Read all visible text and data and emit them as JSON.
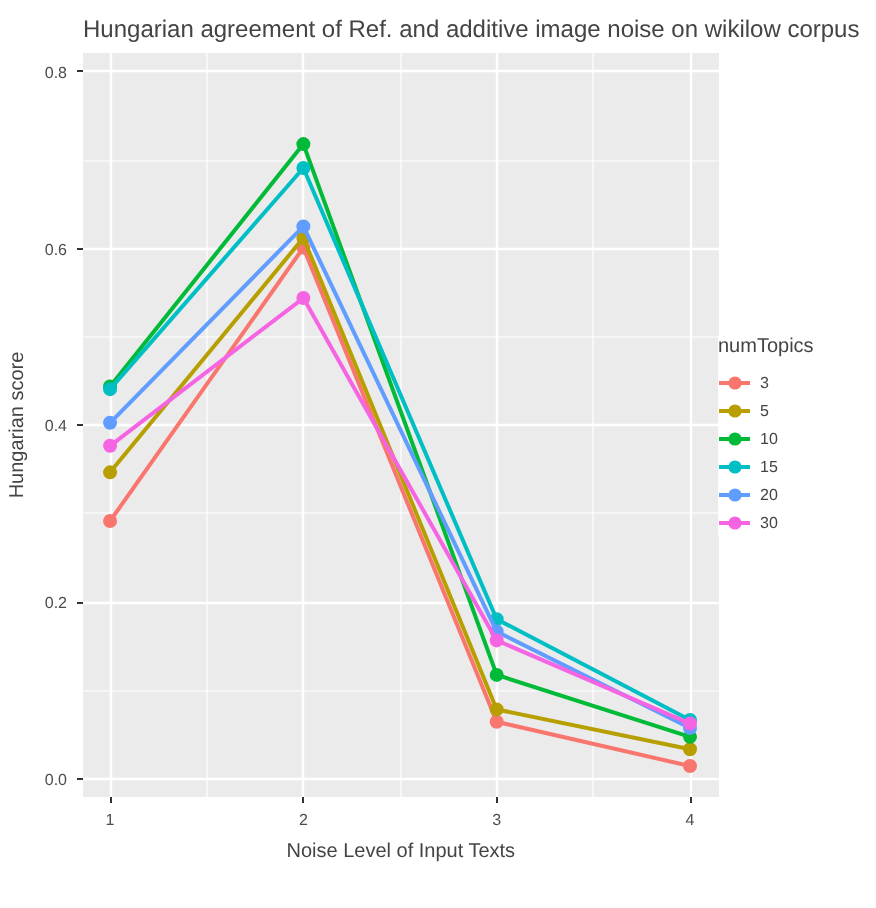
{
  "chart_data": {
    "type": "line",
    "title": "Hungarian agreement of Ref. and additive image noise on wikilow corpus",
    "xlabel": "Noise Level of Input Texts",
    "ylabel": "Hungarian score",
    "legend_title": "numTopics",
    "x": [
      1,
      2,
      3,
      4
    ],
    "series": [
      {
        "name": "3",
        "color": "#f8766d",
        "values": [
          0.292,
          0.601,
          0.065,
          0.015
        ]
      },
      {
        "name": "5",
        "color": "#b79f00",
        "values": [
          0.347,
          0.612,
          0.079,
          0.034
        ]
      },
      {
        "name": "10",
        "color": "#00ba38",
        "values": [
          0.444,
          0.718,
          0.118,
          0.048
        ]
      },
      {
        "name": "15",
        "color": "#00bfc4",
        "values": [
          0.441,
          0.691,
          0.181,
          0.067
        ]
      },
      {
        "name": "20",
        "color": "#619cff",
        "values": [
          0.403,
          0.625,
          0.167,
          0.058
        ]
      },
      {
        "name": "30",
        "color": "#f564e3",
        "values": [
          0.377,
          0.544,
          0.157,
          0.063
        ]
      }
    ],
    "xlim": [
      0.86,
      4.15
    ],
    "ylim": [
      -0.02,
      0.821
    ],
    "xticks": [
      1,
      2,
      3,
      4
    ],
    "yticks": [
      {
        "value": 0,
        "label": "0.0"
      },
      {
        "value": 0.2,
        "label": "0.2"
      },
      {
        "value": 0.4,
        "label": "0.4"
      },
      {
        "value": 0.6,
        "label": "0.6"
      },
      {
        "value": 0.8,
        "label": "0.8"
      }
    ],
    "grid": true,
    "legend": "right",
    "marker": "circle",
    "line_style": "solid"
  }
}
